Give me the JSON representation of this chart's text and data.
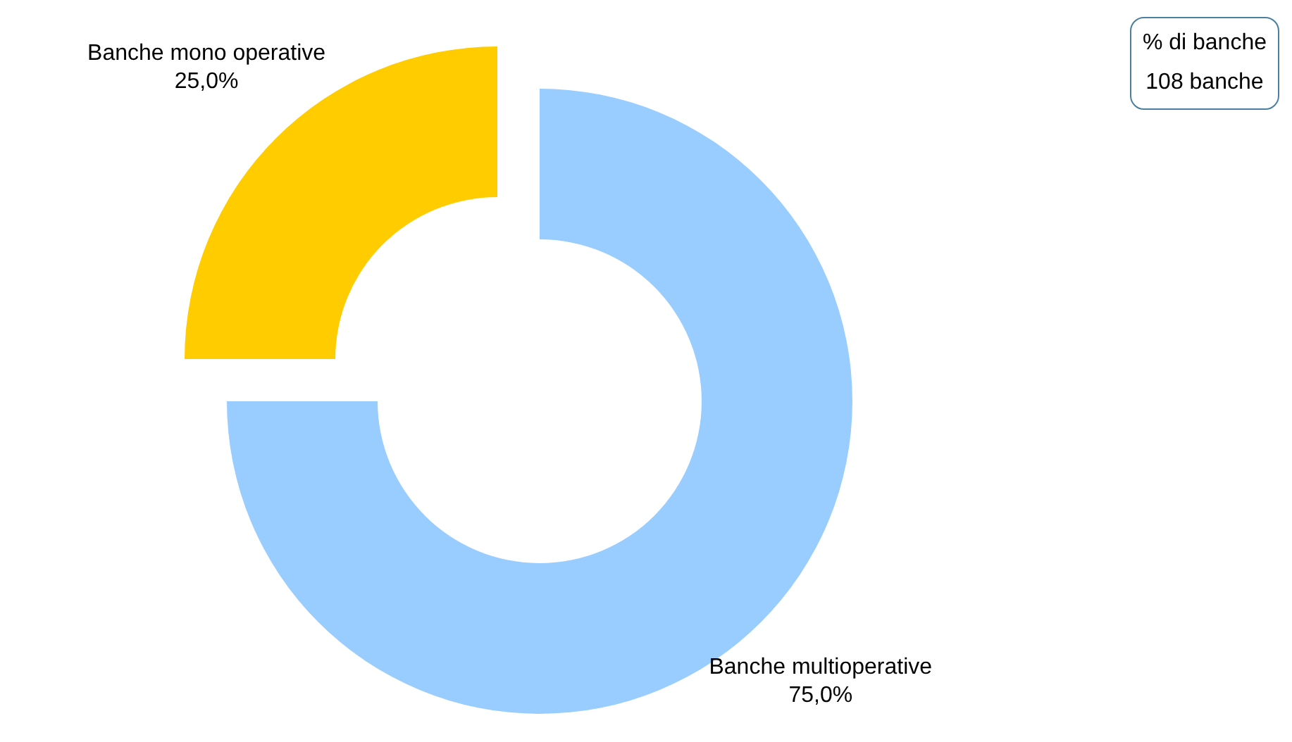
{
  "chart_data": {
    "type": "donut",
    "categories": [
      "Banche multioperative",
      "Banche mono operative"
    ],
    "values": [
      75,
      25
    ],
    "colors": [
      "#99ccff",
      "#ffcc00"
    ],
    "value_labels": [
      "75,0%",
      "25,0%"
    ],
    "annotations": [
      "% di banche",
      "108 banche"
    ]
  }
}
